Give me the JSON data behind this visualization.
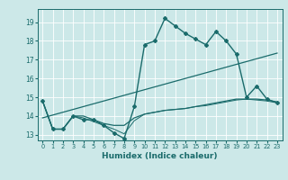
{
  "title": "",
  "xlabel": "Humidex (Indice chaleur)",
  "background_color": "#cce8e8",
  "grid_color": "#ffffff",
  "line_color": "#1a6b6b",
  "xlim": [
    -0.5,
    23.5
  ],
  "ylim": [
    12.7,
    19.7
  ],
  "yticks": [
    13,
    14,
    15,
    16,
    17,
    18,
    19
  ],
  "xticks": [
    0,
    1,
    2,
    3,
    4,
    5,
    6,
    7,
    8,
    9,
    10,
    11,
    12,
    13,
    14,
    15,
    16,
    17,
    18,
    19,
    20,
    21,
    22,
    23
  ],
  "lines": [
    {
      "x": [
        0,
        1,
        2,
        3,
        4,
        5,
        6,
        7,
        8,
        9,
        10,
        11,
        12,
        13,
        14,
        15,
        16,
        17,
        18,
        19,
        20,
        21,
        22,
        23
      ],
      "y": [
        14.8,
        13.3,
        13.3,
        14.0,
        13.8,
        13.8,
        13.5,
        13.1,
        12.8,
        14.5,
        17.8,
        18.0,
        19.2,
        18.8,
        18.4,
        18.1,
        17.8,
        18.5,
        18.0,
        17.3,
        15.0,
        15.6,
        14.9,
        14.7
      ],
      "marker": "D",
      "markersize": 2.0,
      "linewidth": 1.0
    },
    {
      "x": [
        0,
        1,
        2,
        3,
        4,
        5,
        6,
        7,
        8,
        9,
        10,
        11,
        12,
        13,
        14,
        15,
        16,
        17,
        18,
        19,
        20,
        21,
        22,
        23
      ],
      "y": [
        14.8,
        13.3,
        13.3,
        14.0,
        14.0,
        13.8,
        13.6,
        13.5,
        13.5,
        13.9,
        14.1,
        14.2,
        14.3,
        14.35,
        14.4,
        14.5,
        14.6,
        14.7,
        14.8,
        14.9,
        14.9,
        14.9,
        14.85,
        14.75
      ],
      "marker": null,
      "markersize": 0,
      "linewidth": 0.9
    },
    {
      "x": [
        0,
        23
      ],
      "y": [
        13.9,
        17.35
      ],
      "marker": null,
      "markersize": 0,
      "linewidth": 0.9
    },
    {
      "x": [
        0,
        1,
        2,
        3,
        4,
        5,
        6,
        7,
        8,
        9,
        10,
        11,
        12,
        13,
        14,
        15,
        16,
        17,
        18,
        19,
        20,
        21,
        22,
        23
      ],
      "y": [
        14.8,
        13.3,
        13.3,
        14.0,
        13.9,
        13.7,
        13.5,
        13.3,
        13.05,
        13.75,
        14.1,
        14.2,
        14.3,
        14.35,
        14.4,
        14.5,
        14.55,
        14.65,
        14.75,
        14.85,
        14.9,
        14.85,
        14.8,
        14.7
      ],
      "marker": null,
      "markersize": 0,
      "linewidth": 0.7
    }
  ]
}
